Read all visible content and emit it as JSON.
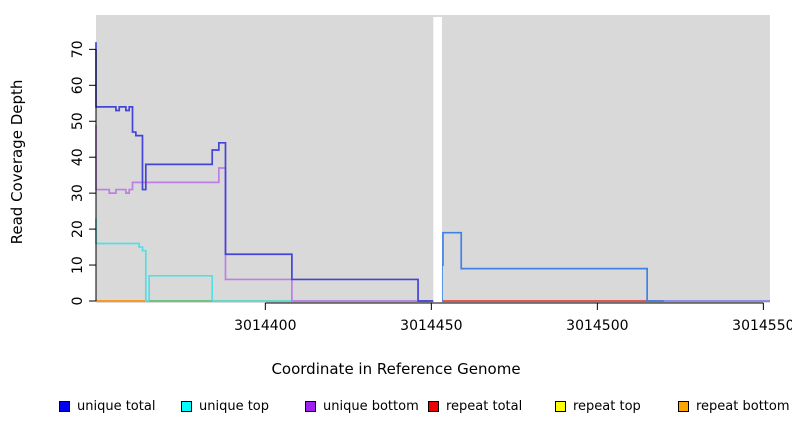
{
  "chart_data": {
    "type": "line",
    "subtype": "step-coverage",
    "title": "",
    "xlabel": "Coordinate in Reference Genome",
    "ylabel": "Read Coverage Depth",
    "xlim": [
      3014349,
      3014552
    ],
    "ylim": [
      0,
      79
    ],
    "x_ticks": [
      3014400,
      3014450,
      3014500,
      3014550
    ],
    "y_ticks": [
      0,
      10,
      20,
      30,
      40,
      50,
      60,
      70
    ],
    "grid": false,
    "plot_background": "#d9d9d9",
    "no_data_gap": {
      "from": 3014450.6,
      "to": 3014453.2
    },
    "series": [
      {
        "name": "repeat top",
        "color": "#ffd700",
        "points": [
          [
            3014349,
            0
          ],
          [
            3014552,
            0
          ]
        ]
      },
      {
        "name": "repeat total",
        "color": "#e04358",
        "points": [
          [
            3014349,
            0
          ],
          [
            3014552,
            0
          ]
        ]
      },
      {
        "name": "repeat bottom",
        "color": "#ff9e1b",
        "points": [
          [
            3014349,
            0
          ],
          [
            3014450.6,
            0
          ]
        ]
      },
      {
        "name": "unique top",
        "color": "#55dfe2",
        "points": [
          [
            3014349,
            23
          ],
          [
            3014362,
            16
          ],
          [
            3014363,
            15
          ],
          [
            3014364,
            14
          ],
          [
            3014365,
            0
          ],
          [
            3014384,
            7
          ],
          [
            3014446,
            0
          ],
          [
            3014450.6,
            0
          ]
        ]
      },
      {
        "name": "unique top at zero (overlap)",
        "color": "#5fc98f",
        "points": [
          [
            3014365,
            0
          ],
          [
            3014384,
            0
          ]
        ]
      },
      {
        "name": "unique top at zero (overlap)",
        "color": "#5fc98f",
        "points": [
          [
            3014446,
            0
          ],
          [
            3014450.6,
            0
          ]
        ]
      },
      {
        "name": "unique bottom",
        "color": "#bd7fe6",
        "points": [
          [
            3014349,
            49
          ],
          [
            3014353,
            31
          ],
          [
            3014355,
            30
          ],
          [
            3014358,
            31
          ],
          [
            3014359,
            30
          ],
          [
            3014360,
            31
          ],
          [
            3014386,
            33
          ],
          [
            3014388,
            37
          ],
          [
            3014408,
            6
          ],
          [
            3014449,
            0
          ],
          [
            3014450.6,
            0
          ]
        ]
      },
      {
        "name": "unique total (left of gap)",
        "color": "#4444d8",
        "points": [
          [
            3014349,
            72
          ],
          [
            3014355,
            54
          ],
          [
            3014356,
            53
          ],
          [
            3014358,
            54
          ],
          [
            3014359,
            53
          ],
          [
            3014360,
            54
          ],
          [
            3014361,
            47
          ],
          [
            3014363,
            46
          ],
          [
            3014364,
            31
          ],
          [
            3014384,
            38
          ],
          [
            3014386,
            42
          ],
          [
            3014388,
            44
          ],
          [
            3014408,
            13
          ],
          [
            3014446,
            6
          ],
          [
            3014449,
            0
          ],
          [
            3014450.6,
            0
          ]
        ]
      },
      {
        "name": "unique total (right of gap)",
        "color": "#3e82e8",
        "points": [
          [
            3014453.2,
            0
          ],
          [
            3014453.5,
            10
          ],
          [
            3014459,
            19
          ],
          [
            3014515,
            9
          ],
          [
            3014520,
            0
          ],
          [
            3014552,
            0
          ]
        ]
      },
      {
        "name": "unique total at zero (overlap)",
        "color": "#9090e8",
        "points": [
          [
            3014520,
            0
          ],
          [
            3014552,
            0
          ]
        ]
      }
    ],
    "legend": {
      "position": "bottom",
      "items": [
        {
          "label": "unique total",
          "color": "#0000ee"
        },
        {
          "label": "unique top",
          "color": "#00ffff"
        },
        {
          "label": "unique bottom",
          "color": "#a020f0"
        },
        {
          "label": "repeat total",
          "color": "#ee0000"
        },
        {
          "label": "repeat top",
          "color": "#ffff00"
        },
        {
          "label": "repeat bottom",
          "color": "#ffa500"
        }
      ]
    }
  }
}
